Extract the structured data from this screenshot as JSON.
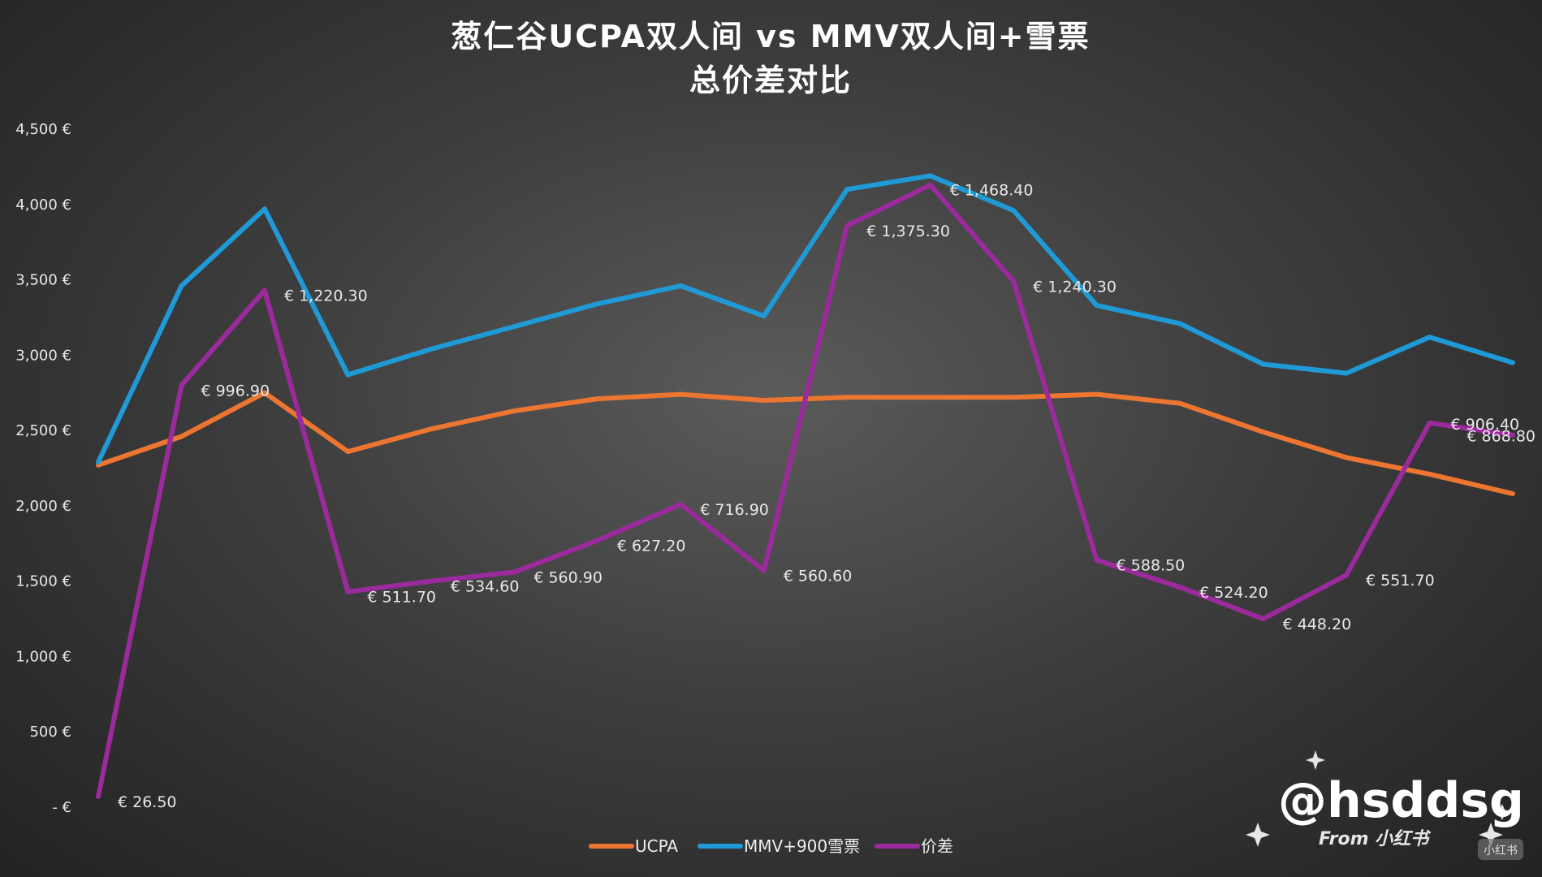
{
  "chart_data": {
    "type": "line",
    "title": "葱仁谷UCPA双人间 vs MMV双人间+雪票",
    "subtitle": "总价差对比",
    "ylim": [
      0,
      4500
    ],
    "yticks": [
      0,
      500,
      1000,
      1500,
      2000,
      2500,
      3000,
      3500,
      4000,
      4500
    ],
    "ytick_labels": [
      "- €",
      "500 €",
      "1,000 €",
      "1,500 €",
      "2,000 €",
      "2,500 €",
      "3,000 €",
      "3,500 €",
      "4,000 €",
      "4,500 €"
    ],
    "grid": false,
    "legend_position": "bottom",
    "series": [
      {
        "name": "UCPA",
        "color": "#ec7631",
        "values": [
          2270,
          2460,
          2750,
          2360,
          2510,
          2630,
          2710,
          2740,
          2700,
          2720,
          2720,
          2720,
          2740,
          2680,
          2490,
          2320,
          2210,
          2080
        ]
      },
      {
        "name": "MMV+900雪票",
        "color": "#1f9ad6",
        "values": [
          2290,
          3460,
          3970,
          2870,
          3040,
          3190,
          3340,
          3460,
          3260,
          4100,
          4190,
          3960,
          3330,
          3210,
          2940,
          2880,
          3120,
          2950
        ]
      },
      {
        "name": "价差",
        "color": "#9b2a9c",
        "values": [
          70,
          2800,
          3430,
          1430,
          1500,
          1560,
          1770,
          2010,
          1570,
          3860,
          4130,
          3490,
          1640,
          1460,
          1250,
          1540,
          2550,
          2470
        ],
        "labels": [
          "€ 26.50",
          "€ 996.90",
          "€ 1,220.30",
          "€ 511.70",
          "€ 534.60",
          "€ 560.90",
          "€ 627.20",
          "€ 716.90",
          "€ 560.60",
          "€ 1,375.30",
          "€ 1,468.40",
          "€ 1,240.30",
          "€ 588.50",
          "€ 524.20",
          "€ 448.20",
          "€ 551.70",
          "€ 906.40",
          "€ 868.80"
        ]
      }
    ]
  },
  "watermark": {
    "handle": "@hsddsg",
    "source": "From 小红书",
    "badge": "小红书"
  }
}
